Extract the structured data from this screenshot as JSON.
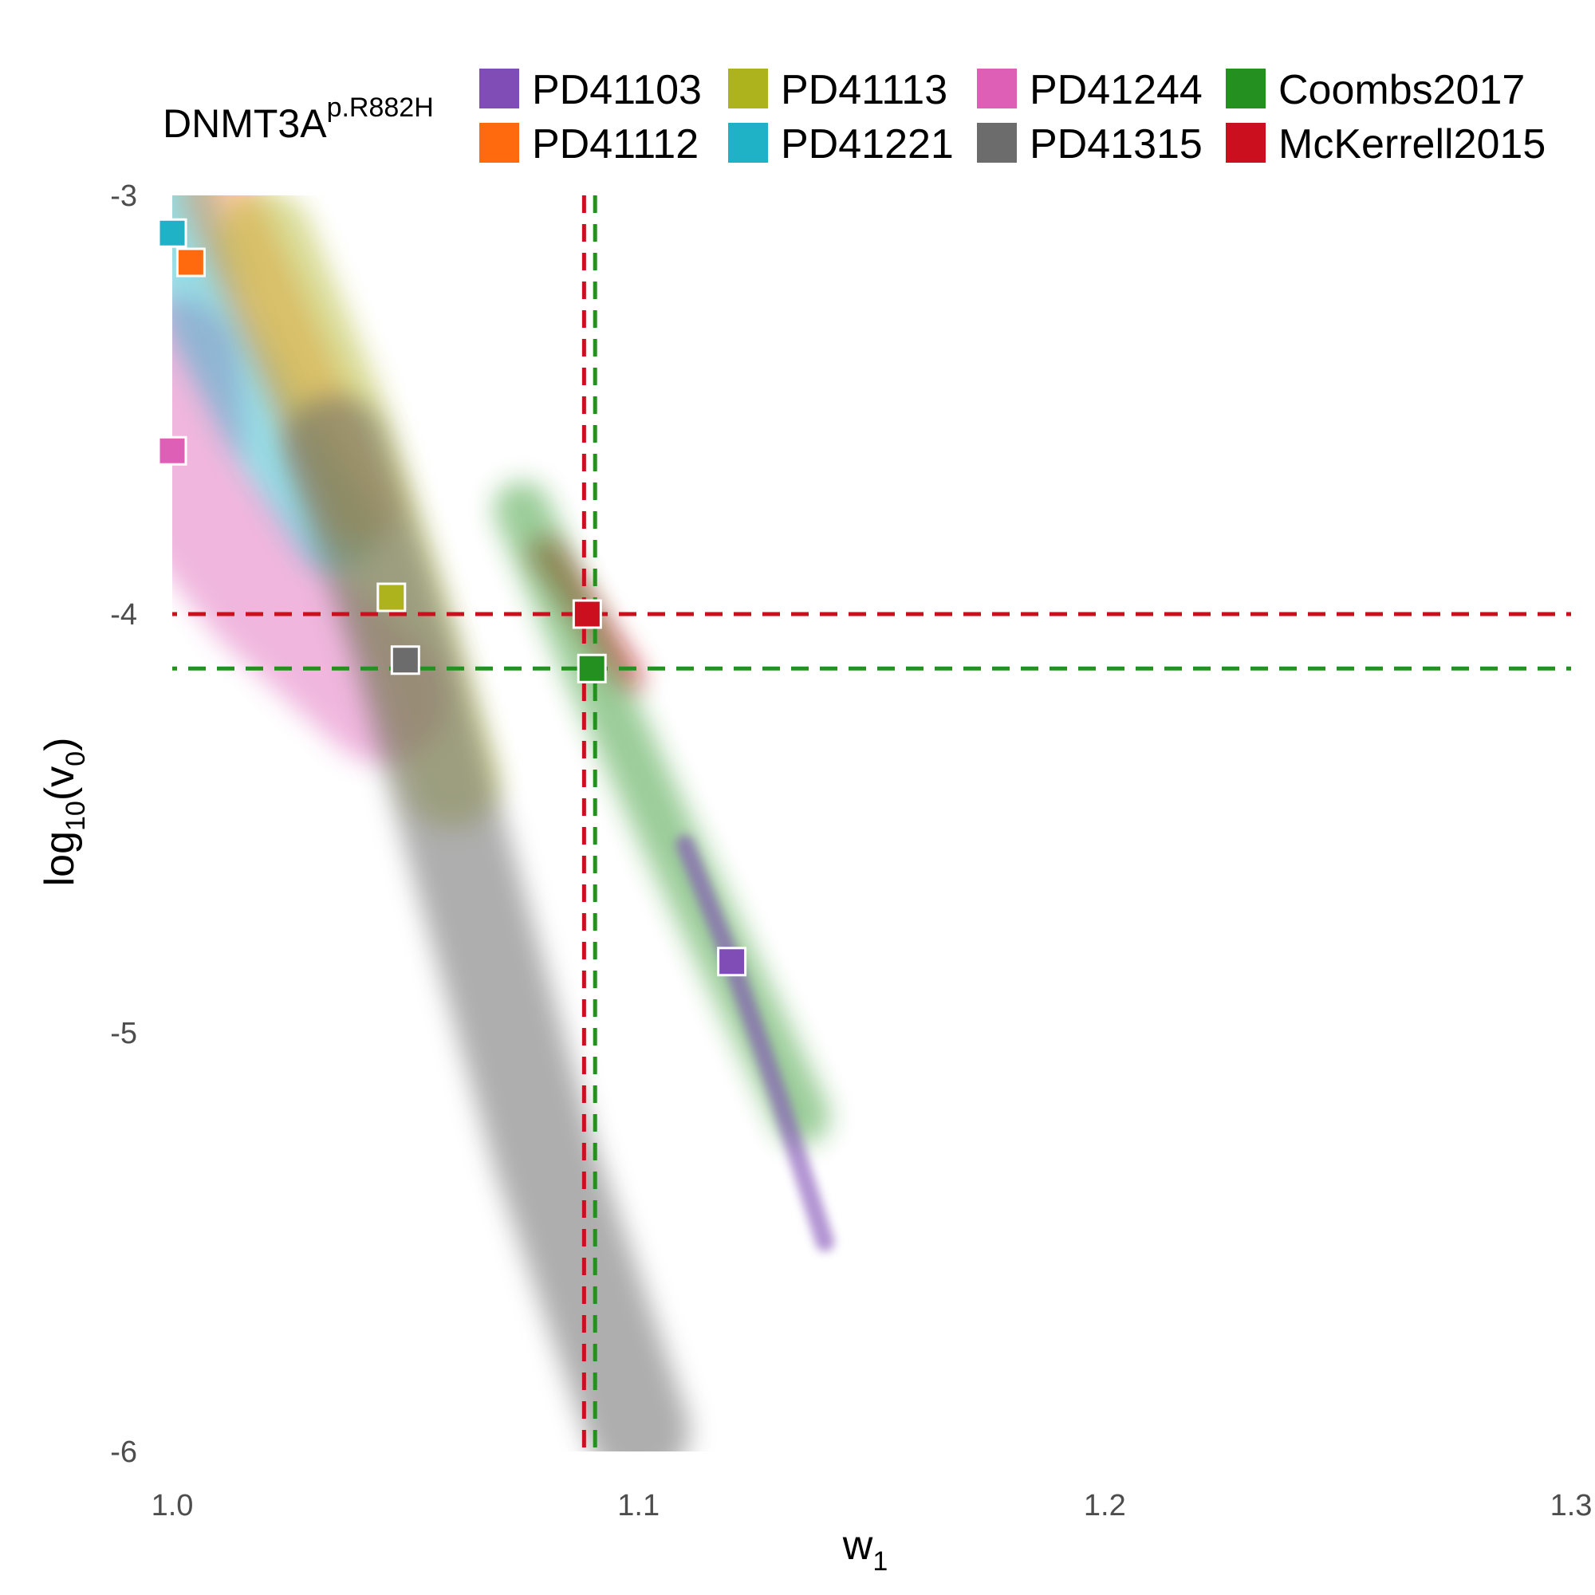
{
  "chart_data": {
    "type": "scatter",
    "title": "",
    "legend": {
      "title_main": "DNMT3A",
      "title_sup": "p.R882H",
      "placement": "top",
      "entries": [
        {
          "label": "PD41103",
          "color": "#7f4db5"
        },
        {
          "label": "PD41113",
          "color": "#acb31c"
        },
        {
          "label": "PD41244",
          "color": "#de5fb6"
        },
        {
          "label": "Coombs2017",
          "color": "#24901f"
        },
        {
          "label": "PD41112",
          "color": "#ff6a0e"
        },
        {
          "label": "PD41221",
          "color": "#1fb2c6"
        },
        {
          "label": "PD41315",
          "color": "#6c6c6c"
        },
        {
          "label": "McKerrell2015",
          "color": "#cb0f1f"
        }
      ]
    },
    "x_axis": {
      "label_main": "w",
      "label_sub": "1",
      "range": [
        1.0,
        1.3
      ],
      "ticks": [
        1.0,
        1.1,
        1.2,
        1.3
      ],
      "tick_labels": [
        "1.0",
        "1.1",
        "1.2",
        "1.3"
      ]
    },
    "y_axis": {
      "label_pre": "log",
      "label_pre_sub": "10",
      "label_mid": "(v",
      "label_mid_sub": "0",
      "label_post": ")",
      "range": [
        -6,
        -3
      ],
      "ticks": [
        -3,
        -4,
        -5,
        -6
      ],
      "tick_labels": [
        "-3",
        "-4",
        "-5",
        "-6"
      ]
    },
    "grid": false,
    "points": [
      {
        "name": "PD41221",
        "x": 1.0,
        "y": -3.09,
        "color": "#1fb2c6"
      },
      {
        "name": "PD41112",
        "x": 1.004,
        "y": -3.16,
        "color": "#ff6a0e"
      },
      {
        "name": "PD41244",
        "x": 1.0,
        "y": -3.61,
        "color": "#de5fb6"
      },
      {
        "name": "PD41113",
        "x": 1.047,
        "y": -3.96,
        "color": "#acb31c"
      },
      {
        "name": "PD41315",
        "x": 1.05,
        "y": -4.11,
        "color": "#6c6c6c"
      },
      {
        "name": "McKerrell2015",
        "x": 1.089,
        "y": -4.0,
        "color": "#cb0f1f"
      },
      {
        "name": "Coombs2017",
        "x": 1.09,
        "y": -4.13,
        "color": "#24901f"
      },
      {
        "name": "PD41103",
        "x": 1.12,
        "y": -4.83,
        "color": "#7f4db5"
      }
    ],
    "reference_lines": [
      {
        "name": "McKerrell2015",
        "x": 1.089,
        "y": -4.0,
        "color": "#cb0f1f"
      },
      {
        "name": "Coombs2017",
        "x": 1.09,
        "y": -4.13,
        "color": "#24901f"
      }
    ],
    "density_bands": [
      {
        "name": "PD41244",
        "color": "#de5fb6",
        "path": [
          [
            1.0,
            -3.4
          ],
          [
            1.002,
            -3.7
          ],
          [
            1.02,
            -3.95
          ],
          [
            1.045,
            -4.2
          ]
        ],
        "width": 0.028,
        "opacity": 0.45
      },
      {
        "name": "PD41221",
        "color": "#1fb2c6",
        "path": [
          [
            1.0,
            -3.0
          ],
          [
            1.008,
            -3.3
          ],
          [
            1.02,
            -3.55
          ],
          [
            1.035,
            -3.8
          ]
        ],
        "width": 0.018,
        "opacity": 0.45
      },
      {
        "name": "PD41112",
        "color": "#ff6a0e",
        "path": [
          [
            1.01,
            -3.0
          ],
          [
            1.02,
            -3.25
          ],
          [
            1.03,
            -3.5
          ],
          [
            1.04,
            -3.75
          ]
        ],
        "width": 0.016,
        "opacity": 0.35
      },
      {
        "name": "PD41113",
        "color": "#acb31c",
        "path": [
          [
            1.02,
            -3.1
          ],
          [
            1.035,
            -3.5
          ],
          [
            1.048,
            -3.95
          ],
          [
            1.06,
            -4.4
          ]
        ],
        "width": 0.02,
        "opacity": 0.45
      },
      {
        "name": "PD41315",
        "color": "#6c6c6c",
        "path": [
          [
            1.035,
            -3.6
          ],
          [
            1.05,
            -4.1
          ],
          [
            1.065,
            -4.7
          ],
          [
            1.08,
            -5.3
          ],
          [
            1.1,
            -5.95
          ]
        ],
        "width": 0.022,
        "opacity": 0.55
      },
      {
        "name": "McKerrell2015",
        "color": "#cb0f1f",
        "path": [
          [
            1.08,
            -3.85
          ],
          [
            1.089,
            -4.0
          ],
          [
            1.098,
            -4.15
          ]
        ],
        "width": 0.006,
        "opacity": 0.6
      },
      {
        "name": "Coombs2017",
        "color": "#24901f",
        "path": [
          [
            1.075,
            -3.75
          ],
          [
            1.09,
            -4.13
          ],
          [
            1.105,
            -4.5
          ],
          [
            1.12,
            -4.85
          ],
          [
            1.135,
            -5.2
          ]
        ],
        "width": 0.012,
        "opacity": 0.45
      },
      {
        "name": "PD41103",
        "color": "#7f4db5",
        "path": [
          [
            1.11,
            -4.55
          ],
          [
            1.12,
            -4.83
          ],
          [
            1.13,
            -5.15
          ],
          [
            1.14,
            -5.5
          ]
        ],
        "width": 0.004,
        "opacity": 0.6
      }
    ]
  }
}
